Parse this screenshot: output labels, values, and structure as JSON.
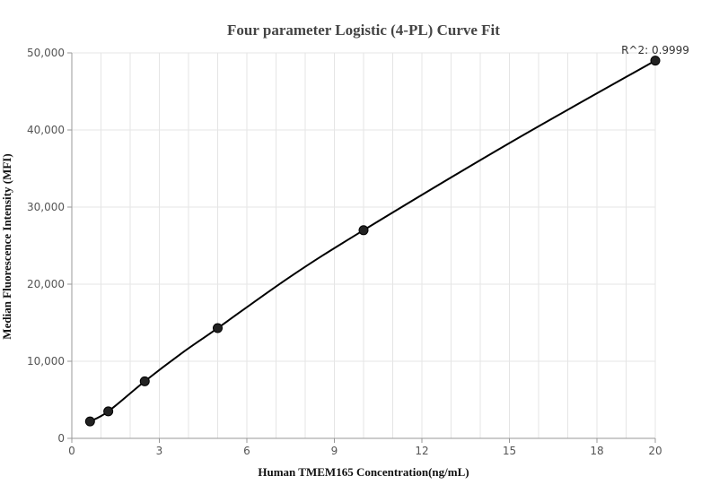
{
  "chart_data": {
    "type": "scatter",
    "title": "Four parameter Logistic (4-PL) Curve Fit",
    "xlabel": "Human TMEM165 Concentration(ng/mL)",
    "ylabel": "Median Fluorescence Intensity (MFI)",
    "xlim": [
      0,
      20
    ],
    "ylim": [
      0,
      50000
    ],
    "x_ticks": [
      0,
      3,
      6,
      9,
      12,
      15,
      18,
      20
    ],
    "x_tick_labels": [
      "0",
      "3",
      "6",
      "9",
      "12",
      "15",
      "18",
      "20"
    ],
    "y_ticks": [
      0,
      10000,
      20000,
      30000,
      40000,
      50000
    ],
    "y_tick_labels": [
      "0",
      "10,000",
      "20,000",
      "30,000",
      "40,000",
      "50,000"
    ],
    "grid": true,
    "series": [
      {
        "points": [
          {
            "x": 0.625,
            "y": 2200
          },
          {
            "x": 1.25,
            "y": 3500
          },
          {
            "x": 2.5,
            "y": 7400
          },
          {
            "x": 5,
            "y": 14300
          },
          {
            "x": 10,
            "y": 27000
          },
          {
            "x": 20,
            "y": 49000
          }
        ]
      }
    ],
    "fit_curve": [
      {
        "x": 0.625,
        "y": 2200
      },
      {
        "x": 1.25,
        "y": 3500
      },
      {
        "x": 2.5,
        "y": 7400
      },
      {
        "x": 3.75,
        "y": 11000
      },
      {
        "x": 5,
        "y": 14300
      },
      {
        "x": 7.5,
        "y": 21000
      },
      {
        "x": 10,
        "y": 27000
      },
      {
        "x": 15,
        "y": 38300
      },
      {
        "x": 20,
        "y": 49000
      }
    ],
    "annotation": "R^2: 0.9999",
    "colors": {
      "line": "#000000",
      "marker": "#222222",
      "grid": "#e5e5e5",
      "axis": "#999999"
    }
  }
}
